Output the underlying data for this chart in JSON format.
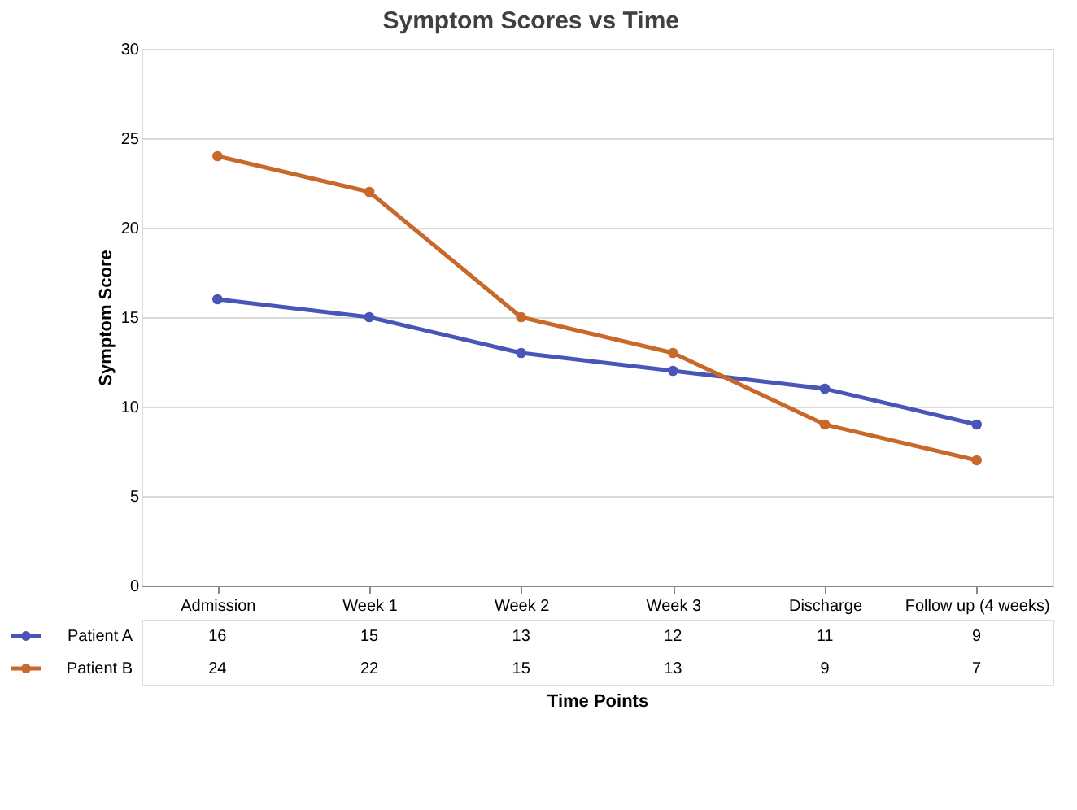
{
  "chart_data": {
    "type": "line",
    "title": "Symptom Scores vs Time",
    "xlabel": "Time Points",
    "ylabel": "Symptom Score",
    "categories": [
      "Admission",
      "Week 1",
      "Week 2",
      "Week 3",
      "Discharge",
      "Follow up (4 weeks)"
    ],
    "series": [
      {
        "name": "Patient A",
        "color": "#4a55b8",
        "values": [
          16,
          15,
          13,
          12,
          11,
          9
        ]
      },
      {
        "name": "Patient B",
        "color": "#c8682a",
        "values": [
          24,
          22,
          15,
          13,
          9,
          7
        ]
      }
    ],
    "ylim": [
      0,
      30
    ],
    "yticks": [
      0,
      5,
      10,
      15,
      20,
      25,
      30
    ],
    "grid": "y",
    "marker": "circle",
    "legend": "bottom",
    "data_labels": true
  }
}
